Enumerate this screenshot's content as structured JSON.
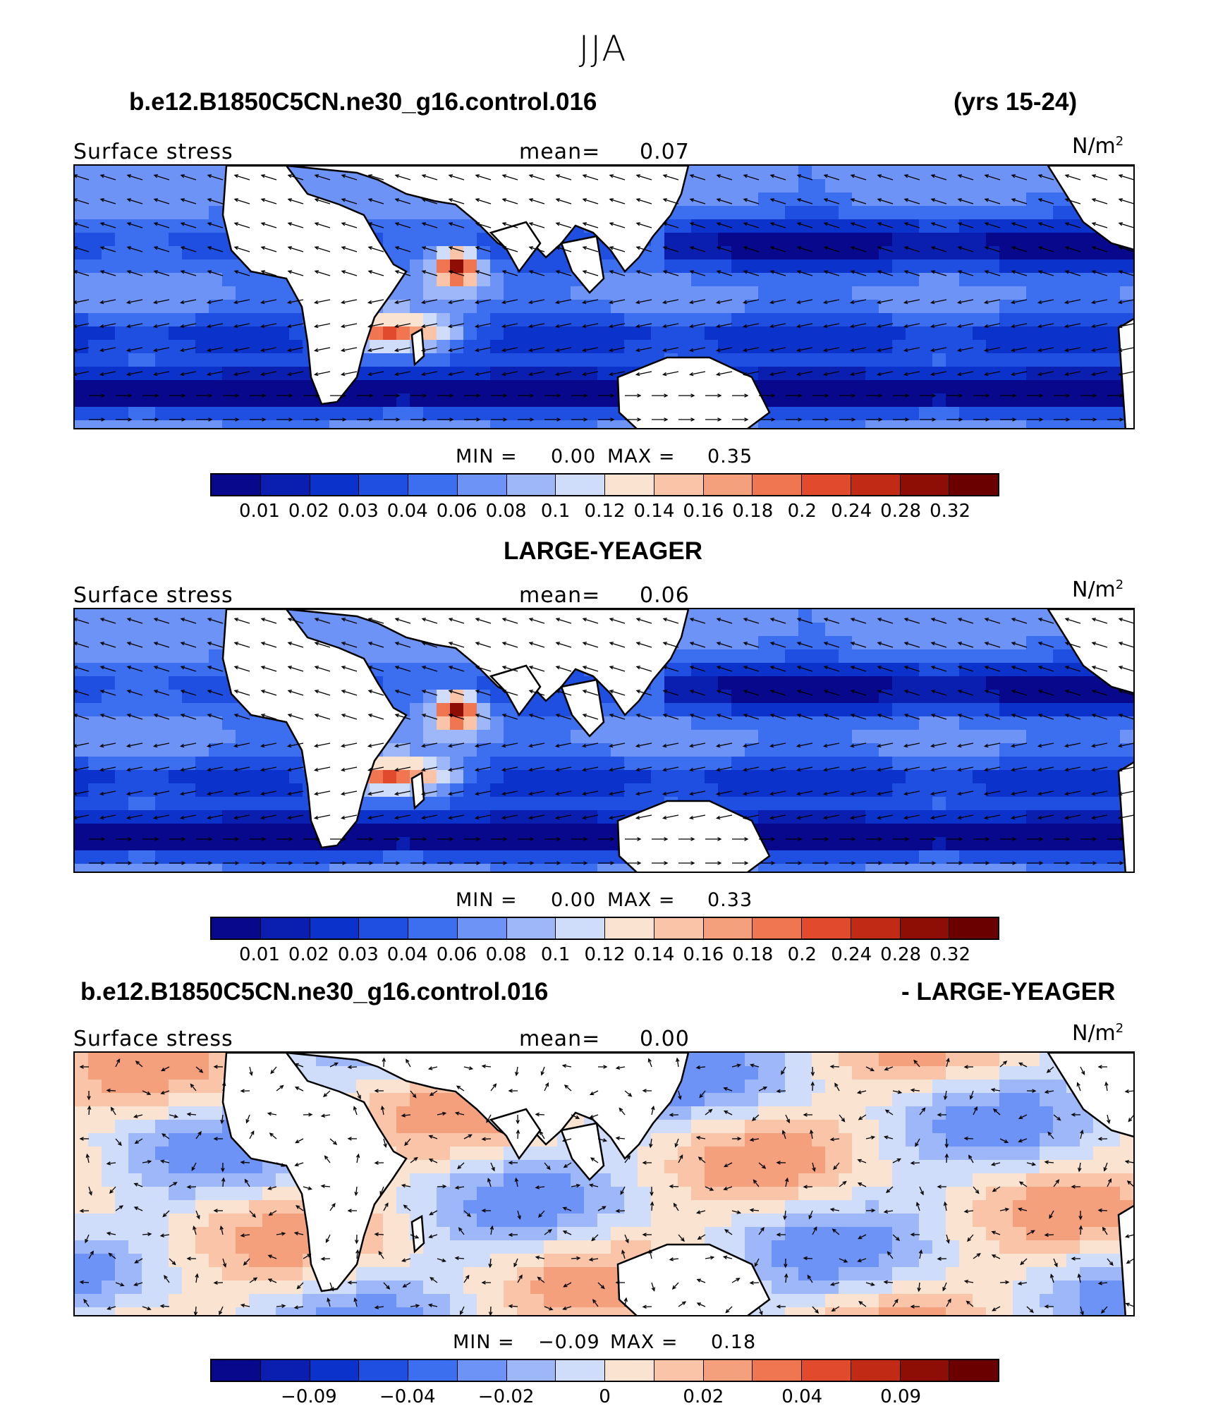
{
  "figure": {
    "title": "JJA",
    "case_a": "b.e12.B1850C5CN.ne30_g16.control.016",
    "years": "(yrs 15-24)",
    "case_b": "LARGE-YEAGER",
    "diff_left": "b.e12.B1850C5CN.ne30_g16.control.016",
    "diff_right": "- LARGE-YEAGER"
  },
  "panels": [
    {
      "variable": "Surface stress",
      "mean_label": "mean=",
      "mean": "0.07",
      "units_base": "N/m",
      "units_exp": "2",
      "min_label": "MIN =",
      "min": "0.00",
      "max_label": "MAX =",
      "max": "0.35",
      "colorbar_ticks": [
        "0.01",
        "0.02",
        "0.03",
        "0.04",
        "0.06",
        "0.08",
        "0.1",
        "0.12",
        "0.14",
        "0.16",
        "0.18",
        "0.2",
        "0.24",
        "0.28",
        "0.32"
      ]
    },
    {
      "variable": "Surface stress",
      "mean_label": "mean=",
      "mean": "0.06",
      "units_base": "N/m",
      "units_exp": "2",
      "min_label": "MIN =",
      "min": "0.00",
      "max_label": "MAX =",
      "max": "0.33",
      "colorbar_ticks": [
        "0.01",
        "0.02",
        "0.03",
        "0.04",
        "0.06",
        "0.08",
        "0.1",
        "0.12",
        "0.14",
        "0.16",
        "0.18",
        "0.2",
        "0.24",
        "0.28",
        "0.32"
      ]
    },
    {
      "variable": "Surface stress",
      "mean_label": "mean=",
      "mean": "0.00",
      "units_base": "N/m",
      "units_exp": "2",
      "min_label": "MIN =",
      "min": "−0.09",
      "max_label": "MAX =",
      "max": "0.18",
      "colorbar_ticks": [
        "−0.09",
        "−0.04",
        "−0.02",
        "0",
        "0.02",
        "0.04",
        "0.09"
      ]
    }
  ],
  "chart_data": [
    {
      "type": "heatmap",
      "title": "b.e12.B1850C5CN.ne30_g16.control.016 (yrs 15-24)",
      "variable": "Surface stress",
      "units": "N/m2",
      "mean": 0.07,
      "min": 0.0,
      "max": 0.35,
      "contour_levels": [
        0.01,
        0.02,
        0.03,
        0.04,
        0.06,
        0.08,
        0.1,
        0.12,
        0.14,
        0.16,
        0.18,
        0.2,
        0.24,
        0.28,
        0.32
      ],
      "overlay": "wind stress vectors"
    },
    {
      "type": "heatmap",
      "title": "LARGE-YEAGER",
      "variable": "Surface stress",
      "units": "N/m2",
      "mean": 0.06,
      "min": 0.0,
      "max": 0.33,
      "contour_levels": [
        0.01,
        0.02,
        0.03,
        0.04,
        0.06,
        0.08,
        0.1,
        0.12,
        0.14,
        0.16,
        0.18,
        0.2,
        0.24,
        0.28,
        0.32
      ],
      "overlay": "wind stress vectors"
    },
    {
      "type": "heatmap",
      "title": "b.e12.B1850C5CN.ne30_g16.control.016 - LARGE-YEAGER",
      "variable": "Surface stress",
      "units": "N/m2",
      "mean": 0.0,
      "min": -0.09,
      "max": 0.18,
      "tick_labels": [
        -0.09,
        -0.04,
        -0.02,
        0,
        0.02,
        0.04,
        0.09
      ],
      "overlay": "wind stress difference vectors"
    }
  ],
  "colors": {
    "scale": [
      "#08088c",
      "#0a1fb0",
      "#0b33cc",
      "#1f4fe0",
      "#3c6ef0",
      "#6c93f5",
      "#9db7f8",
      "#cfdcfa",
      "#fbe3d2",
      "#f9c4a7",
      "#f5a07c",
      "#ef7650",
      "#e14a2c",
      "#c12a14",
      "#8e0e05",
      "#6a0000"
    ]
  }
}
